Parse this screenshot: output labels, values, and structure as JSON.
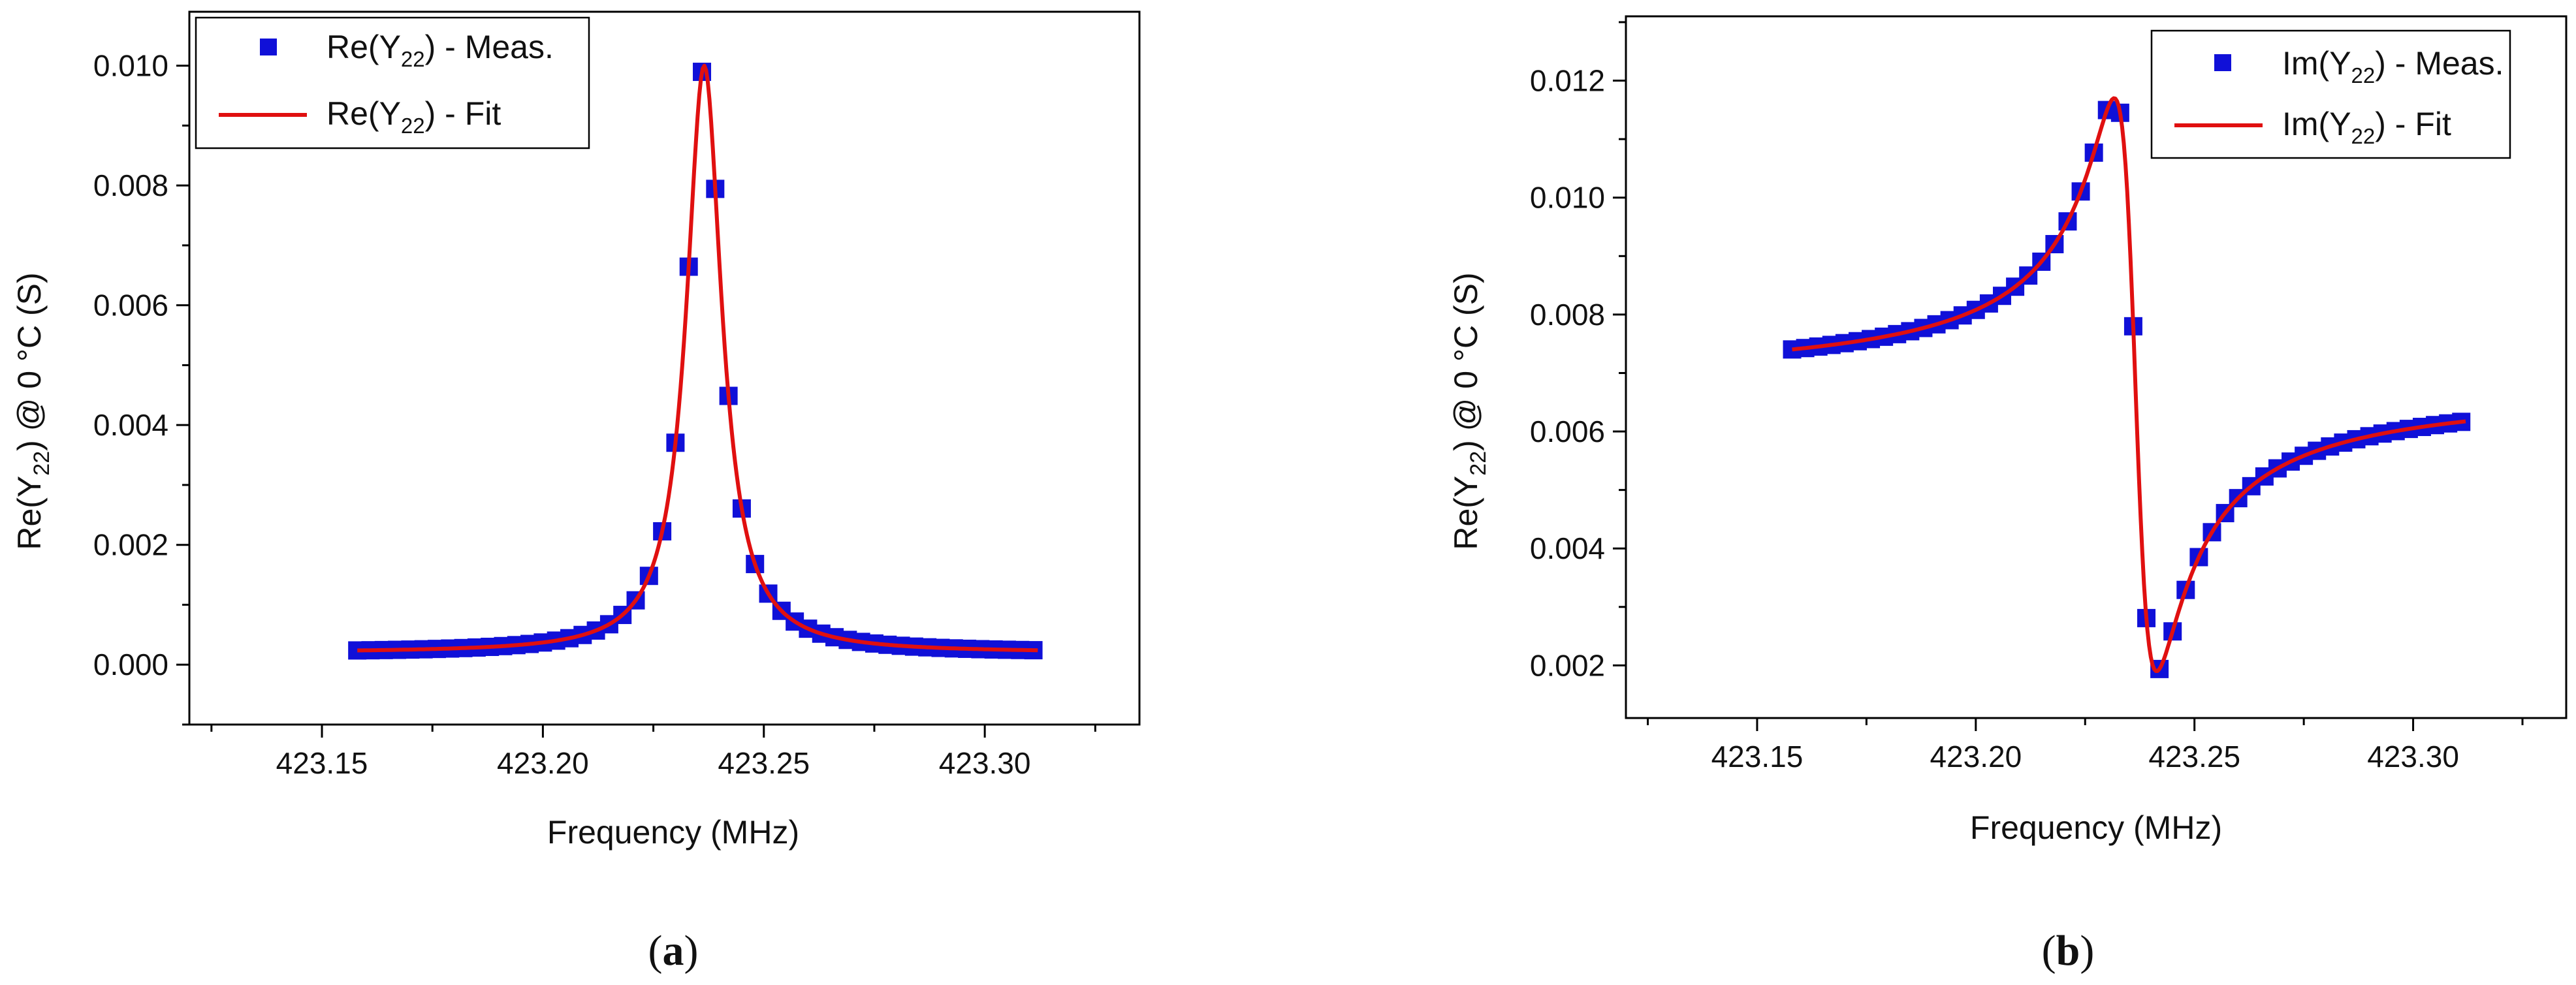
{
  "chart_data": [
    {
      "id": "a",
      "type": "scatter",
      "caption_letter": "a",
      "xlabel": "Frequency (MHz)",
      "ylabel": {
        "before": "Re(Y",
        "sub": "22",
        "after": ") @ 0 °C (S)"
      },
      "xlim": [
        423.12,
        423.335
      ],
      "ylim": [
        -0.001,
        0.0109
      ],
      "xticks": [
        423.15,
        423.2,
        423.25,
        423.3
      ],
      "xtick_labels": [
        "423.15",
        "423.20",
        "423.25",
        "423.30"
      ],
      "yticks": [
        0.0,
        0.002,
        0.004,
        0.006,
        0.008,
        0.01
      ],
      "ytick_labels": [
        "0.000",
        "0.002",
        "0.004",
        "0.006",
        "0.008",
        "0.010"
      ],
      "legend_position": "top-left",
      "series": [
        {
          "name_before": "Re(Y",
          "name_sub": "22",
          "name_after": ") - Meas.",
          "kind": "markers",
          "color": "#1010d8",
          "model": {
            "kind": "lorentz-real",
            "f0": 423.2365,
            "A": 0.0098,
            "gamma": 0.0097,
            "offset": 0.0002
          },
          "x": [
            423.158,
            423.161,
            423.164,
            423.167,
            423.17,
            423.173,
            423.176,
            423.179,
            423.182,
            423.185,
            423.188,
            423.191,
            423.194,
            423.197,
            423.2,
            423.203,
            423.206,
            423.209,
            423.212,
            423.215,
            423.218,
            423.221,
            423.224,
            423.227,
            423.23,
            423.233,
            423.236,
            423.239,
            423.242,
            423.245,
            423.248,
            423.251,
            423.254,
            423.257,
            423.26,
            423.263,
            423.266,
            423.269,
            423.272,
            423.275,
            423.278,
            423.281,
            423.284,
            423.287,
            423.29,
            423.293,
            423.296,
            423.299,
            423.302,
            423.305,
            423.308,
            423.311
          ]
        },
        {
          "name_before": "Re(Y",
          "name_sub": "22",
          "name_after": ") - Fit",
          "kind": "line",
          "color": "#e01010",
          "model": {
            "kind": "lorentz-real",
            "f0": 423.2365,
            "A": 0.0098,
            "gamma": 0.0097,
            "offset": 0.0002
          },
          "x_range": [
            423.158,
            423.312
          ]
        }
      ]
    },
    {
      "id": "b",
      "type": "scatter",
      "caption_letter": "b",
      "xlabel": "Frequency (MHz)",
      "ylabel": {
        "before": "Re(Y",
        "sub": "22",
        "after": ") @ 0 °C (S)"
      },
      "xlim": [
        423.12,
        423.335
      ],
      "ylim": [
        0.0011,
        0.0131
      ],
      "xticks": [
        423.15,
        423.2,
        423.25,
        423.3
      ],
      "xtick_labels": [
        "423.15",
        "423.20",
        "423.25",
        "423.30"
      ],
      "yticks": [
        0.002,
        0.004,
        0.006,
        0.008,
        0.01,
        0.012
      ],
      "ytick_labels": [
        "0.002",
        "0.004",
        "0.006",
        "0.008",
        "0.010",
        "0.012"
      ],
      "legend_position": "top-right",
      "series": [
        {
          "name_before": "Im(Y",
          "name_sub": "22",
          "name_after": ") - Meas.",
          "kind": "markers",
          "color": "#1010d8",
          "model": {
            "kind": "lorentz-imag",
            "f0": 423.2365,
            "A": 0.0098,
            "gamma": 0.0097,
            "offset": 0.0068
          },
          "x": [
            423.158,
            423.161,
            423.164,
            423.167,
            423.17,
            423.173,
            423.176,
            423.179,
            423.182,
            423.185,
            423.188,
            423.191,
            423.194,
            423.197,
            423.2,
            423.203,
            423.206,
            423.209,
            423.212,
            423.215,
            423.218,
            423.221,
            423.224,
            423.227,
            423.23,
            423.233,
            423.236,
            423.239,
            423.242,
            423.245,
            423.248,
            423.251,
            423.254,
            423.257,
            423.26,
            423.263,
            423.266,
            423.269,
            423.272,
            423.275,
            423.278,
            423.281,
            423.284,
            423.287,
            423.29,
            423.293,
            423.296,
            423.299,
            423.302,
            423.305,
            423.308,
            423.311
          ]
        },
        {
          "name_before": "Im(Y",
          "name_sub": "22",
          "name_after": ") - Fit",
          "kind": "line",
          "color": "#e01010",
          "model": {
            "kind": "lorentz-imag",
            "f0": 423.2365,
            "A": 0.0098,
            "gamma": 0.0097,
            "offset": 0.0068
          },
          "x_range": [
            423.158,
            423.312
          ]
        }
      ]
    }
  ]
}
